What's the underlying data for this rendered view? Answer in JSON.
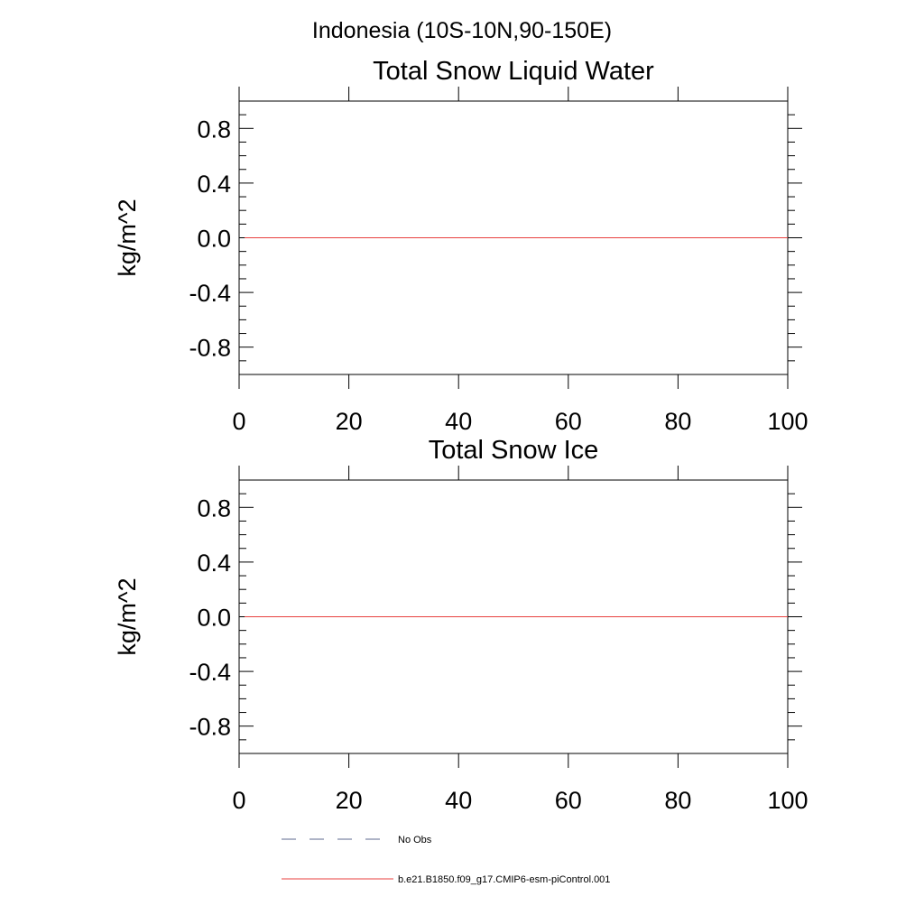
{
  "figure": {
    "title": "Indonesia (10S-10N,90-150E)"
  },
  "colors": {
    "model_line": "#e8413f",
    "obs_line": "#5c6a8f",
    "axes": "#000000"
  },
  "legend": {
    "entries": [
      {
        "label": "No Obs",
        "style": "dashed",
        "color": "#5c6a8f"
      },
      {
        "label": "b.e21.B1850.f09_g17.CMIP6-esm-piControl.001",
        "style": "solid",
        "color": "#e8413f"
      }
    ]
  },
  "chart_data": [
    {
      "type": "line",
      "title": "Total Snow Liquid Water",
      "xlabel": "",
      "ylabel": "kg/m^2",
      "xlim": [
        0,
        100
      ],
      "ylim": [
        -1.0,
        1.0
      ],
      "xticks": [
        0,
        20,
        40,
        60,
        80,
        100
      ],
      "xtick_labels": [
        "0",
        "20",
        "40",
        "60",
        "80",
        "100"
      ],
      "yticks": [
        0.8,
        0.4,
        0.0,
        -0.4,
        -0.8
      ],
      "ytick_labels": [
        "0.8",
        "0.4",
        "0.0",
        "-0.4",
        "-0.8"
      ],
      "grid": false,
      "series": [
        {
          "name": "b.e21.B1850.f09_g17.CMIP6-esm-piControl.001",
          "x": [
            1,
            100
          ],
          "y": [
            0.0,
            0.0
          ]
        }
      ]
    },
    {
      "type": "line",
      "title": "Total Snow Ice",
      "xlabel": "",
      "ylabel": "kg/m^2",
      "xlim": [
        0,
        100
      ],
      "ylim": [
        -1.0,
        1.0
      ],
      "xticks": [
        0,
        20,
        40,
        60,
        80,
        100
      ],
      "xtick_labels": [
        "0",
        "20",
        "40",
        "60",
        "80",
        "100"
      ],
      "yticks": [
        0.8,
        0.4,
        0.0,
        -0.4,
        -0.8
      ],
      "ytick_labels": [
        "0.8",
        "0.4",
        "0.0",
        "-0.4",
        "-0.8"
      ],
      "grid": false,
      "series": [
        {
          "name": "b.e21.B1850.f09_g17.CMIP6-esm-piControl.001",
          "x": [
            1,
            100
          ],
          "y": [
            0.0,
            0.0
          ]
        }
      ]
    }
  ]
}
